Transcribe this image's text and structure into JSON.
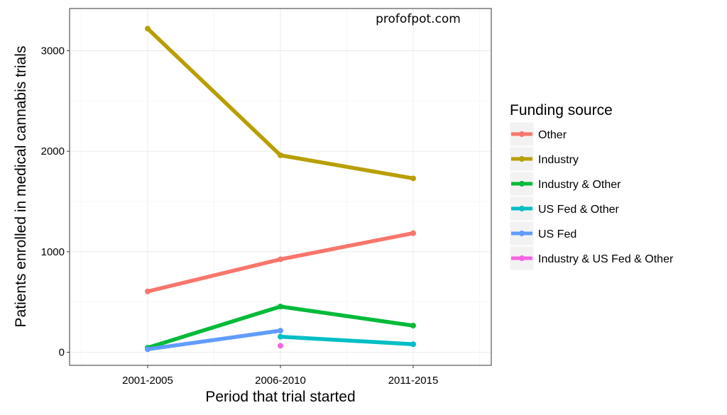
{
  "chart_data": {
    "type": "line",
    "watermark": "profofpot.com",
    "xlabel": "Period that trial started",
    "ylabel": "Patients enrolled in medical cannabis trials",
    "categories": [
      "2001-2005",
      "2006-2010",
      "2011-2015"
    ],
    "yticks": [
      0,
      1000,
      2000,
      3000
    ],
    "ylim": [
      -130,
      3420
    ],
    "grid": true,
    "legend": {
      "title": "Funding source",
      "position": "right"
    },
    "series": [
      {
        "name": "Other",
        "color": "#F8766D",
        "values": [
          605,
          925,
          1185
        ]
      },
      {
        "name": "Industry",
        "color": "#B79F00",
        "values": [
          3220,
          1960,
          1730
        ]
      },
      {
        "name": "Industry & Other",
        "color": "#00BA38",
        "values": [
          45,
          455,
          265
        ]
      },
      {
        "name": "US Fed & Other",
        "color": "#00BFC4",
        "values": [
          null,
          155,
          80
        ]
      },
      {
        "name": "US Fed",
        "color": "#619CFF",
        "values": [
          30,
          215,
          null
        ]
      },
      {
        "name": "Industry & US Fed & Other",
        "color": "#F564E3",
        "values": [
          null,
          65,
          null
        ]
      }
    ]
  }
}
